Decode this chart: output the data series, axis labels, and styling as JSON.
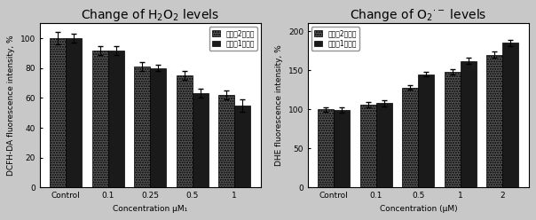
{
  "left": {
    "title": "Change of H$_2$O$_2$ levels",
    "xlabel": "Concentration μM₁",
    "ylabel": "DCFH-DA fluorescence intensity, %",
    "categories": [
      "Control",
      "0.1",
      "0.25",
      "0.5",
      "1"
    ],
    "series1": {
      "label": "实验例2化合物",
      "values": [
        100,
        92,
        81,
        75,
        62
      ],
      "errors": [
        4,
        3,
        3,
        3,
        3
      ],
      "color": "#555555"
    },
    "series2": {
      "label": "实验例1化合物",
      "values": [
        100,
        92,
        80,
        63,
        55
      ],
      "errors": [
        3,
        3,
        2,
        3,
        4
      ],
      "color": "#1a1a1a"
    },
    "ylim": [
      0,
      110
    ],
    "yticks": [
      0,
      20,
      40,
      60,
      80,
      100
    ],
    "legend_loc": "upper right"
  },
  "right": {
    "title": "Change of O$_2$$^{\\cdot -}$ levels",
    "xlabel": "Concentration (μM)",
    "ylabel": "DHE fluorescence intensity, %",
    "categories": [
      "Control",
      "0.1",
      "0.5",
      "1",
      "2"
    ],
    "series1": {
      "label": "实验例2化合物",
      "values": [
        100,
        106,
        128,
        148,
        170
      ],
      "errors": [
        3,
        3,
        3,
        3,
        4
      ],
      "color": "#555555"
    },
    "series2": {
      "label": "实验例1化合物",
      "values": [
        99,
        108,
        145,
        162,
        185
      ],
      "errors": [
        3,
        4,
        3,
        4,
        4
      ],
      "color": "#1a1a1a"
    },
    "ylim": [
      0,
      210
    ],
    "yticks": [
      0,
      50,
      100,
      150,
      200
    ],
    "legend_loc": "upper left"
  },
  "outer_background": "#c8c8c8",
  "plot_background": "#ffffff",
  "bar_width": 0.38,
  "title_fontsize": 10,
  "label_fontsize": 6.5,
  "tick_fontsize": 6.5,
  "legend_fontsize": 5.5
}
